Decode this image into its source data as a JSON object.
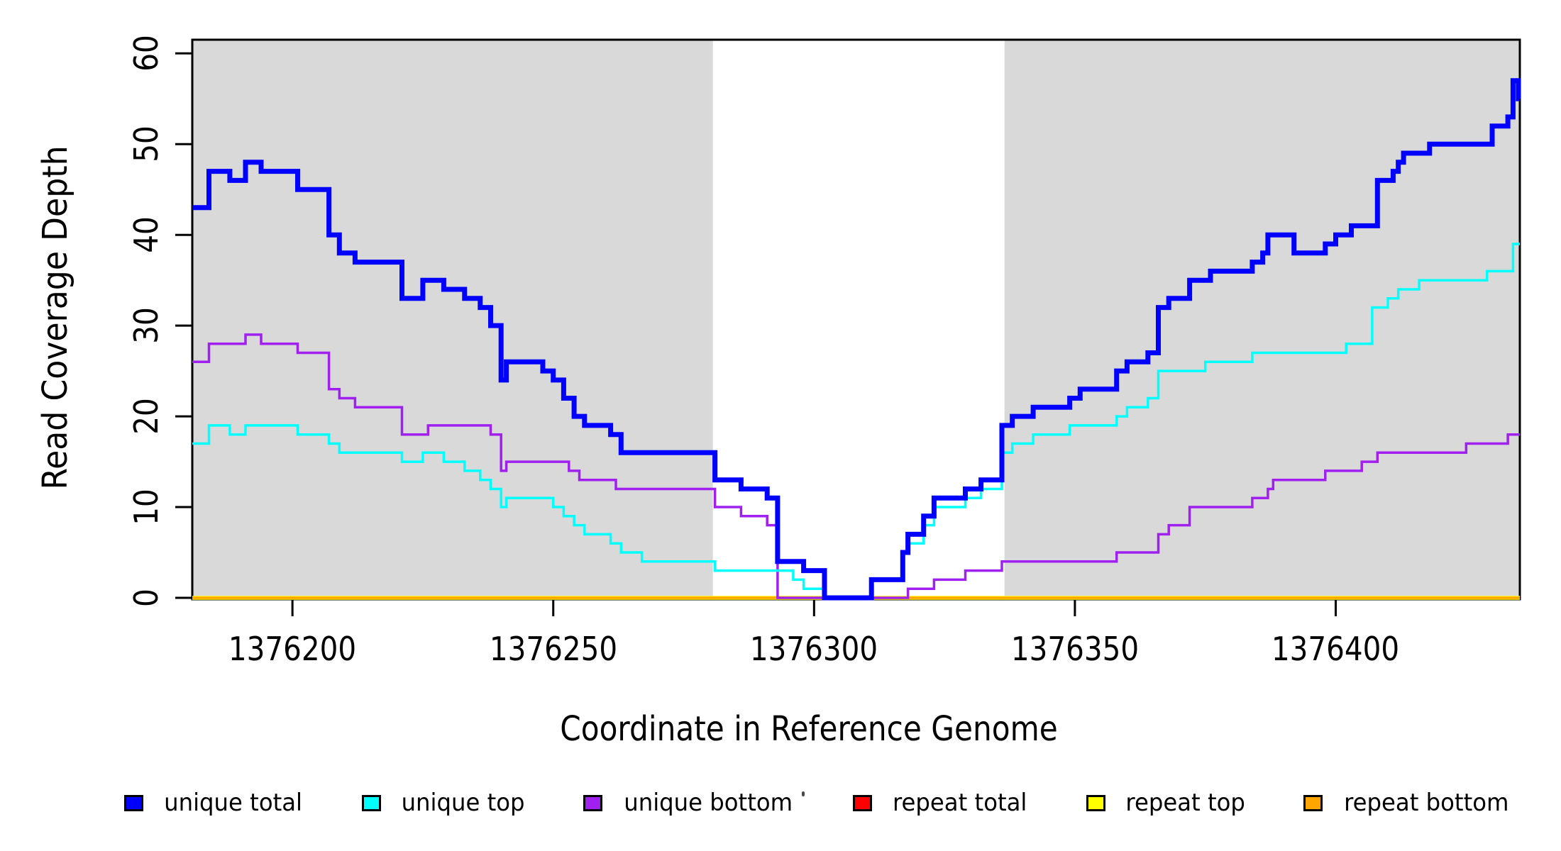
{
  "page": {
    "background": "#ffffff"
  },
  "chart_data": {
    "type": "line",
    "subtype": "step",
    "title": "",
    "xlabel": "Coordinate in Reference Genome",
    "ylabel": "Read Coverage Depth",
    "x_domain": [
      1376180.8,
      1376435.3
    ],
    "ylim": [
      0,
      61.6
    ],
    "grid": false,
    "frame_color": "#000000",
    "x_ticks": {
      "values": [
        1376200,
        1376250,
        1376300,
        1376350,
        1376400
      ],
      "labels": [
        "1376200",
        "1376250",
        "1376300",
        "1376350",
        "1376400"
      ]
    },
    "y_ticks": {
      "values": [
        0,
        10,
        20,
        30,
        40,
        50,
        60
      ],
      "labels": [
        "0",
        "10",
        "20",
        "30",
        "40",
        "50",
        "60"
      ]
    },
    "shaded_regions": {
      "color": "#d9d9d9",
      "ranges": [
        [
          1376180.8,
          1376280.6
        ],
        [
          1376336.5,
          1376435.3
        ]
      ]
    },
    "series": [
      {
        "name": "repeat total",
        "color": "#ff0000",
        "width": 4,
        "points": [
          [
            1376180.8,
            0
          ]
        ]
      },
      {
        "name": "repeat top",
        "color": "#ffff00",
        "width": 5.5,
        "points": [
          [
            1376180.8,
            0
          ]
        ]
      },
      {
        "name": "repeat bottom",
        "color": "#ffa500",
        "width": 3.5,
        "points": [
          [
            1376180.8,
            0
          ]
        ]
      },
      {
        "name": "unique bottom",
        "color": "#a020f0",
        "width": 3.5,
        "points": [
          [
            1376180.8,
            26
          ],
          [
            1376184,
            28
          ],
          [
            1376191,
            29
          ],
          [
            1376194,
            28
          ],
          [
            1376201,
            27
          ],
          [
            1376207,
            23
          ],
          [
            1376209,
            22
          ],
          [
            1376212,
            21
          ],
          [
            1376221,
            18
          ],
          [
            1376226,
            19
          ],
          [
            1376238,
            18
          ],
          [
            1376240,
            14
          ],
          [
            1376241,
            15
          ],
          [
            1376253,
            14
          ],
          [
            1376255,
            13
          ],
          [
            1376262,
            12
          ],
          [
            1376281,
            10
          ],
          [
            1376286,
            9
          ],
          [
            1376291,
            8
          ],
          [
            1376293,
            0
          ],
          [
            1376318,
            1
          ],
          [
            1376323,
            2
          ],
          [
            1376329,
            3
          ],
          [
            1376336,
            4
          ],
          [
            1376358,
            5
          ],
          [
            1376366,
            7
          ],
          [
            1376368,
            8
          ],
          [
            1376372,
            10
          ],
          [
            1376384,
            11
          ],
          [
            1376387,
            12
          ],
          [
            1376388,
            13
          ],
          [
            1376398,
            14
          ],
          [
            1376405,
            15
          ],
          [
            1376408,
            16
          ],
          [
            1376425,
            17
          ],
          [
            1376433,
            18
          ]
        ]
      },
      {
        "name": "unique top",
        "color": "#00ffff",
        "width": 3.5,
        "points": [
          [
            1376180.8,
            17
          ],
          [
            1376184,
            19
          ],
          [
            1376188,
            18
          ],
          [
            1376191,
            19
          ],
          [
            1376201,
            18
          ],
          [
            1376207,
            17
          ],
          [
            1376209,
            16
          ],
          [
            1376221,
            15
          ],
          [
            1376225,
            16
          ],
          [
            1376229,
            15
          ],
          [
            1376233,
            14
          ],
          [
            1376236,
            13
          ],
          [
            1376238,
            12
          ],
          [
            1376240,
            10
          ],
          [
            1376241,
            11
          ],
          [
            1376250,
            10
          ],
          [
            1376252,
            9
          ],
          [
            1376254,
            8
          ],
          [
            1376256,
            7
          ],
          [
            1376261,
            6
          ],
          [
            1376263,
            5
          ],
          [
            1376267,
            4
          ],
          [
            1376281,
            3
          ],
          [
            1376296,
            2
          ],
          [
            1376298,
            1
          ],
          [
            1376302,
            0
          ],
          [
            1376311,
            2
          ],
          [
            1376317,
            5
          ],
          [
            1376318,
            6
          ],
          [
            1376321,
            8
          ],
          [
            1376323,
            10
          ],
          [
            1376329,
            11
          ],
          [
            1376332,
            12
          ],
          [
            1376336,
            16
          ],
          [
            1376338,
            17
          ],
          [
            1376342,
            18
          ],
          [
            1376349,
            19
          ],
          [
            1376358,
            20
          ],
          [
            1376360,
            21
          ],
          [
            1376364,
            22
          ],
          [
            1376366,
            25
          ],
          [
            1376375,
            26
          ],
          [
            1376384,
            27
          ],
          [
            1376402,
            28
          ],
          [
            1376407,
            32
          ],
          [
            1376410,
            33
          ],
          [
            1376412,
            34
          ],
          [
            1376416,
            35
          ],
          [
            1376429,
            36
          ],
          [
            1376434,
            39
          ]
        ]
      },
      {
        "name": "unique total",
        "color": "#0000ff",
        "width": 7,
        "points": [
          [
            1376180.8,
            43
          ],
          [
            1376184,
            47
          ],
          [
            1376188,
            46
          ],
          [
            1376191,
            48
          ],
          [
            1376194,
            47
          ],
          [
            1376201,
            45
          ],
          [
            1376207,
            40
          ],
          [
            1376209,
            38
          ],
          [
            1376212,
            37
          ],
          [
            1376221,
            33
          ],
          [
            1376225,
            35
          ],
          [
            1376229,
            34
          ],
          [
            1376233,
            33
          ],
          [
            1376236,
            32
          ],
          [
            1376238,
            30
          ],
          [
            1376240,
            24
          ],
          [
            1376241,
            26
          ],
          [
            1376248,
            25
          ],
          [
            1376250,
            24
          ],
          [
            1376252,
            22
          ],
          [
            1376254,
            20
          ],
          [
            1376256,
            19
          ],
          [
            1376261,
            18
          ],
          [
            1376263,
            16
          ],
          [
            1376281,
            13
          ],
          [
            1376286,
            12
          ],
          [
            1376291,
            11
          ],
          [
            1376293,
            4
          ],
          [
            1376298,
            3
          ],
          [
            1376302,
            0
          ],
          [
            1376311,
            2
          ],
          [
            1376317,
            5
          ],
          [
            1376318,
            7
          ],
          [
            1376321,
            9
          ],
          [
            1376323,
            11
          ],
          [
            1376329,
            12
          ],
          [
            1376332,
            13
          ],
          [
            1376336,
            19
          ],
          [
            1376338,
            20
          ],
          [
            1376342,
            21
          ],
          [
            1376349,
            22
          ],
          [
            1376351,
            23
          ],
          [
            1376358,
            25
          ],
          [
            1376360,
            26
          ],
          [
            1376364,
            27
          ],
          [
            1376366,
            32
          ],
          [
            1376368,
            33
          ],
          [
            1376372,
            35
          ],
          [
            1376376,
            36
          ],
          [
            1376384,
            37
          ],
          [
            1376386,
            38
          ],
          [
            1376387,
            40
          ],
          [
            1376392,
            38
          ],
          [
            1376398,
            39
          ],
          [
            1376400,
            40
          ],
          [
            1376403,
            41
          ],
          [
            1376408,
            46
          ],
          [
            1376411,
            47
          ],
          [
            1376412,
            48
          ],
          [
            1376413,
            49
          ],
          [
            1376418,
            50
          ],
          [
            1376430,
            52
          ],
          [
            1376433,
            53
          ],
          [
            1376434,
            57
          ],
          [
            1376435,
            55
          ]
        ]
      }
    ],
    "legend": {
      "position": "bottom",
      "items": [
        {
          "label": "unique total",
          "color": "#0000ff"
        },
        {
          "label": "unique top",
          "color": "#00ffff"
        },
        {
          "label": "unique bottom",
          "color": "#a020f0"
        },
        {
          "label": "repeat total",
          "color": "#ff0000"
        },
        {
          "label": "repeat top",
          "color": "#ffff00"
        },
        {
          "label": "repeat bottom",
          "color": "#ffa500"
        }
      ]
    }
  }
}
